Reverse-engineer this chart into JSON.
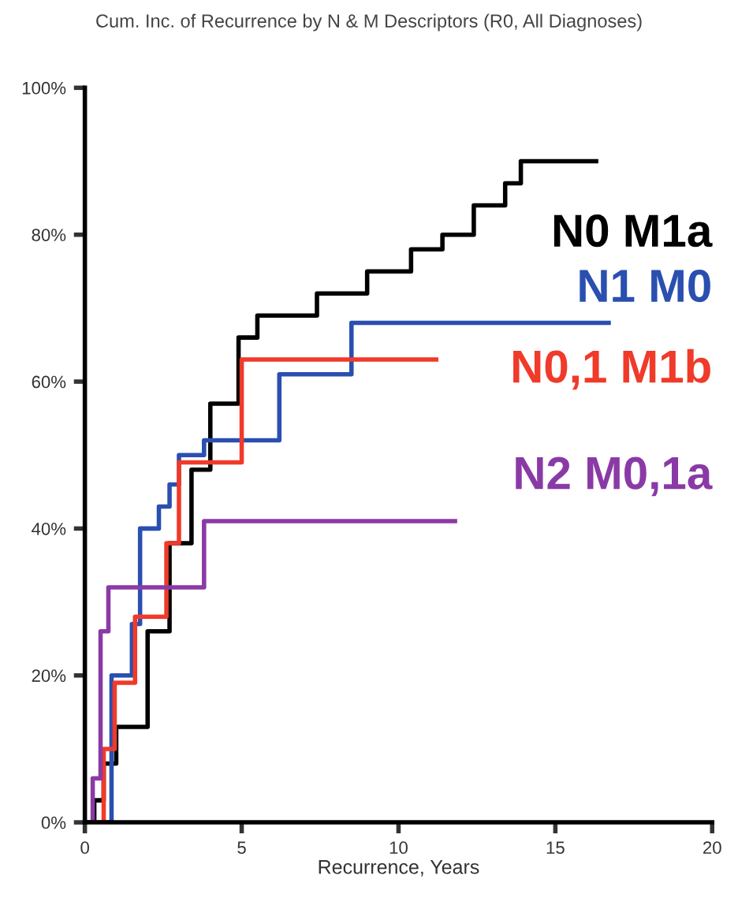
{
  "chart_data": {
    "type": "step",
    "title": "Cum. Inc. of Recurrence by N & M Descriptors (R0, All Diagnoses)",
    "xlabel": "Recurrence, Years",
    "xlim": [
      0,
      20
    ],
    "xticks": [
      0,
      5,
      10,
      15,
      20
    ],
    "ylim": [
      0,
      100
    ],
    "yticks": [
      {
        "value": 0,
        "label": "0%"
      },
      {
        "value": 20,
        "label": "20%"
      },
      {
        "value": 40,
        "label": "40%"
      },
      {
        "value": 60,
        "label": "60%"
      },
      {
        "value": 80,
        "label": "80%"
      },
      {
        "value": 100,
        "label": "100%"
      }
    ],
    "grid": false,
    "legend": false,
    "series": [
      {
        "name": "N0 M1a",
        "color": "#000000",
        "x": [
          0.1,
          0.3,
          0.6,
          1.0,
          2.0,
          2.7,
          3.4,
          4.0,
          4.9,
          5.5,
          7.4,
          9.0,
          10.4,
          11.4,
          12.4,
          13.4,
          13.9,
          16.3
        ],
        "values": [
          0,
          3,
          8,
          13,
          26,
          38,
          48,
          57,
          66,
          69,
          72,
          75,
          78,
          80,
          84,
          87,
          90,
          90
        ]
      },
      {
        "name": "N1 M0",
        "color": "#2a4fb0",
        "x": [
          0.6,
          0.85,
          1.5,
          1.76,
          2.36,
          2.7,
          3.0,
          3.8,
          6.2,
          8.5,
          16.7
        ],
        "values": [
          0,
          20,
          27,
          40,
          43,
          46,
          50,
          52,
          61,
          68,
          68
        ]
      },
      {
        "name": "N0,1 M1b",
        "color": "#f03a2a",
        "x": [
          0.3,
          0.6,
          0.95,
          1.6,
          2.6,
          3.0,
          5.0,
          11.2
        ],
        "values": [
          0,
          10,
          19,
          28,
          38,
          49,
          63,
          63
        ]
      },
      {
        "name": "N2 M0,1a",
        "color": "#8a3aa6",
        "x": [
          0,
          0.25,
          0.5,
          0.75,
          3.8,
          11.8
        ],
        "values": [
          0,
          6,
          26,
          32,
          41,
          41
        ]
      }
    ]
  }
}
